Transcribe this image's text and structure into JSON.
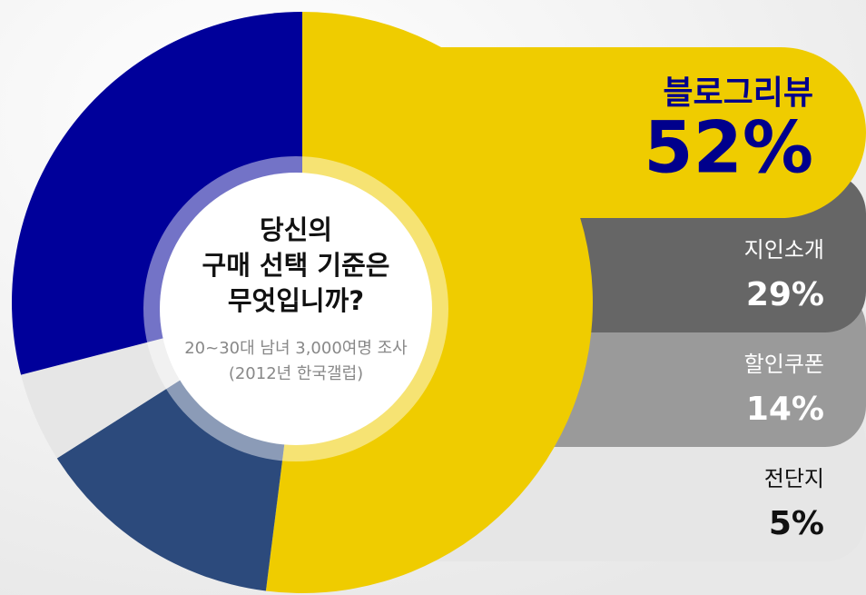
{
  "chart_data": {
    "type": "donut",
    "title": [
      "당신의",
      "구매 선택 기준은",
      "무엇입니까?"
    ],
    "subtitle": [
      "20~30대 남녀 3,000여명 조사",
      "(2012년 한국갤럽)"
    ],
    "categories": [
      "블로그리뷰",
      "지인소개",
      "할인쿠폰",
      "전단지"
    ],
    "values": [
      52,
      29,
      14,
      5
    ],
    "value_labels": [
      "52%",
      "29%",
      "14%",
      "5%"
    ],
    "colors": [
      "#efcc00",
      "#00009a",
      "#2c4a7c",
      "#e6e6e6"
    ],
    "legend_colors": [
      "#efcc00",
      "#666666",
      "#9a9a9a",
      "#e6e6e6"
    ]
  }
}
